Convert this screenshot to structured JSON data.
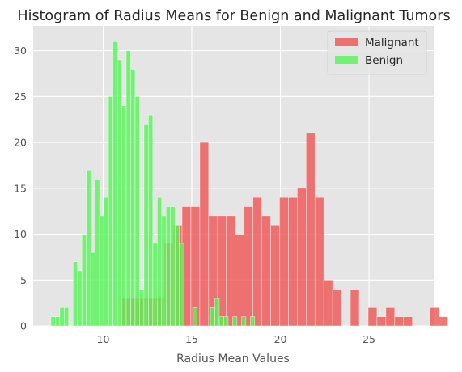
{
  "chart_data": {
    "type": "bar",
    "title": "Histogram of Radius Means for Benign and Malignant Tumors",
    "xlabel": "Radius Mean Values",
    "ylabel": "",
    "xlim": [
      6.05,
      28.65
    ],
    "ylim": [
      0,
      32.7
    ],
    "xticks": [
      10,
      15,
      20,
      25
    ],
    "yticks": [
      0,
      5,
      10,
      15,
      20,
      25,
      30
    ],
    "grid": true,
    "legend_position": "top-right",
    "series": [
      {
        "name": "Malignant",
        "color": "#f05454",
        "bin_start": 10.95,
        "bin_width": 0.5,
        "counts": [
          3,
          3,
          3,
          3,
          3,
          9,
          11,
          13,
          13,
          20,
          12,
          12,
          12,
          10,
          13,
          14,
          12,
          11,
          14,
          14,
          15,
          21,
          14,
          5,
          4,
          0,
          4,
          0,
          2,
          1,
          2,
          1,
          1,
          0,
          0,
          2,
          1
        ]
      },
      {
        "name": "Benign",
        "color": "#55f555",
        "bin_start": 7.05,
        "bin_width": 0.25,
        "counts": [
          1,
          1,
          2,
          2,
          0,
          7,
          6,
          10,
          17,
          8,
          16,
          12,
          14,
          25,
          31,
          29,
          24,
          30,
          28,
          25,
          4,
          22,
          23,
          9,
          14,
          12,
          13,
          13,
          11,
          9,
          0,
          0,
          2,
          0,
          0,
          0,
          2,
          3,
          1,
          1,
          0,
          1,
          0,
          1,
          0,
          1
        ]
      }
    ]
  }
}
